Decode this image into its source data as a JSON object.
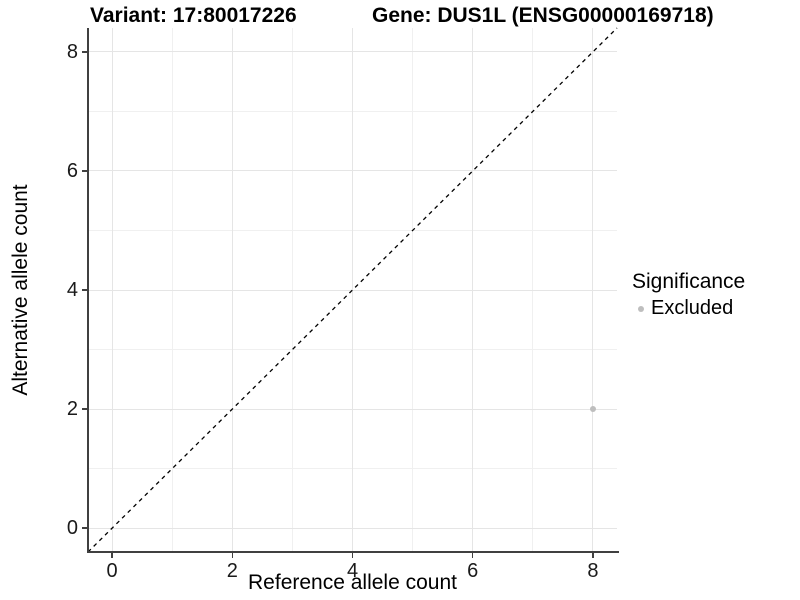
{
  "chart_data": {
    "type": "scatter",
    "title_left": "Variant: 17:80017226",
    "title_right": "Gene: DUS1L (ENSG00000169718)",
    "xlabel": "Reference allele count",
    "ylabel": "Alternative allele count",
    "xlim": [
      -0.4,
      8.4
    ],
    "ylim": [
      -0.4,
      8.4
    ],
    "x_major_ticks": [
      0,
      2,
      4,
      6,
      8
    ],
    "x_minor_ticks": [
      1,
      3,
      5,
      7
    ],
    "y_major_ticks": [
      0,
      2,
      4,
      6,
      8
    ],
    "y_minor_ticks": [
      1,
      3,
      5,
      7
    ],
    "grid": true,
    "legend_position": "right",
    "reference_line": {
      "slope": 1,
      "intercept": 0,
      "style": "dashed",
      "color": "#000000"
    },
    "series": [
      {
        "name": "Excluded",
        "color": "#bebebe",
        "points": [
          {
            "x": 8,
            "y": 2
          }
        ]
      }
    ],
    "legend": {
      "title": "Significance",
      "entries": [
        {
          "label": "Excluded",
          "color": "#bebebe"
        }
      ]
    }
  },
  "colors": {
    "axis_line": "#404040",
    "grid_major": "#e5e5e5",
    "grid_minor": "#f0f0f0",
    "point": "#bebebe",
    "reference_line": "#000000"
  }
}
